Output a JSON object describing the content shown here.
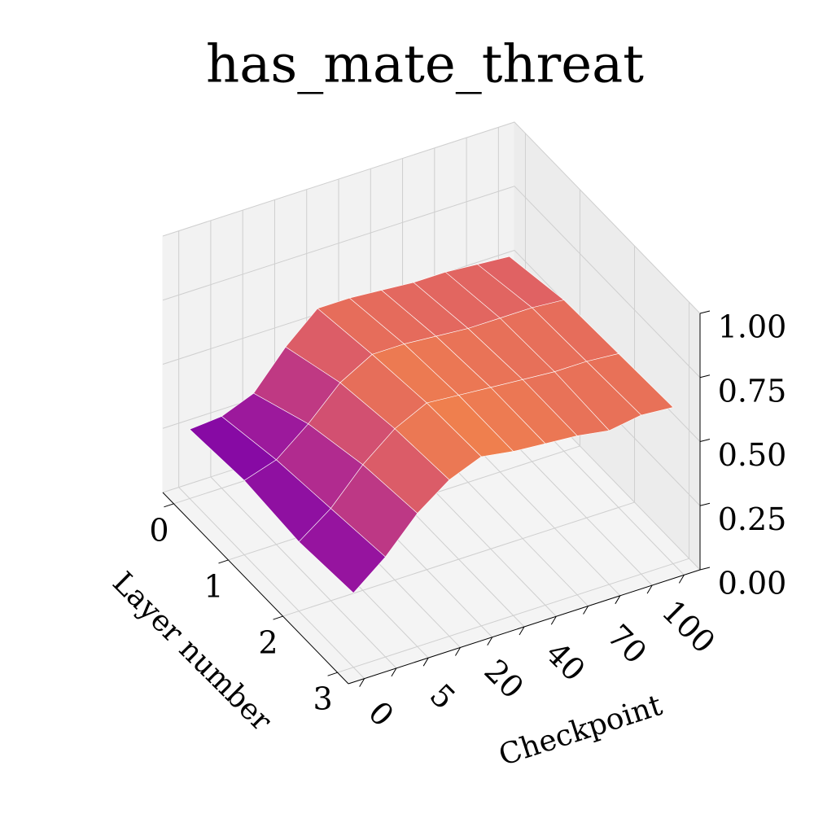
{
  "chart_data": {
    "type": "surface",
    "title": "has_mate_threat",
    "x_label": "Layer number",
    "y_label": "Checkpoint",
    "x": [
      0,
      1,
      2,
      3
    ],
    "xlim": [
      -0.2,
      3.2
    ],
    "xticks": [
      0,
      1,
      2,
      3
    ],
    "categories": [
      "0",
      null,
      "5",
      null,
      "20",
      null,
      "40",
      null,
      "70",
      null,
      "100"
    ],
    "z": [
      [
        0.27,
        0.28,
        0.33,
        0.47,
        0.58,
        0.58,
        0.57,
        0.56,
        0.56,
        0.55,
        0.54
      ],
      [
        0.29,
        0.33,
        0.43,
        0.55,
        0.62,
        0.62,
        0.61,
        0.6,
        0.6,
        0.6,
        0.59
      ],
      [
        0.27,
        0.36,
        0.49,
        0.59,
        0.65,
        0.64,
        0.63,
        0.62,
        0.61,
        0.61,
        0.6
      ],
      [
        0.29,
        0.39,
        0.52,
        0.61,
        0.66,
        0.64,
        0.63,
        0.62,
        0.6,
        0.62,
        0.61
      ]
    ],
    "zlim": [
      0,
      1
    ],
    "zticks": [
      {
        "value": 0,
        "label": "0.00"
      },
      {
        "value": 0.25,
        "label": "0.25"
      },
      {
        "value": 0.5,
        "label": "0.50"
      },
      {
        "value": 0.75,
        "label": "0.75"
      },
      {
        "value": 1,
        "label": "1.00"
      }
    ],
    "colorscale": [
      "#7e03a8",
      "#a62098",
      "#c5407e",
      "#de5f65",
      "#f2844b"
    ],
    "grid": true
  }
}
